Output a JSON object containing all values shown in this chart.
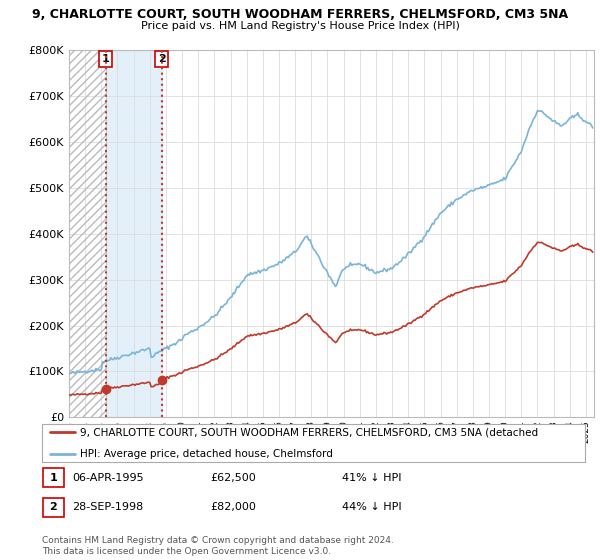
{
  "title1": "9, CHARLOTTE COURT, SOUTH WOODHAM FERRERS, CHELMSFORD, CM3 5NA",
  "title2": "Price paid vs. HM Land Registry's House Price Index (HPI)",
  "sale1_x": 1995.27,
  "sale1_price": 62500,
  "sale2_x": 1998.74,
  "sale2_price": 82000,
  "legend_red": "9, CHARLOTTE COURT, SOUTH WOODHAM FERRERS, CHELMSFORD, CM3 5NA (detached",
  "legend_blue": "HPI: Average price, detached house, Chelmsford",
  "footnote": "Contains HM Land Registry data © Crown copyright and database right 2024.\nThis data is licensed under the Open Government Licence v3.0.",
  "hpi_color": "#7ab4d8",
  "sale_color": "#c0392b",
  "ylim_max": 800000,
  "xlim_min": 1993.0,
  "xlim_max": 2025.5,
  "hatch_color": "#cccccc",
  "span_color": "#ddeeff",
  "grid_color": "#dddddd",
  "bg_color": "#ffffff"
}
